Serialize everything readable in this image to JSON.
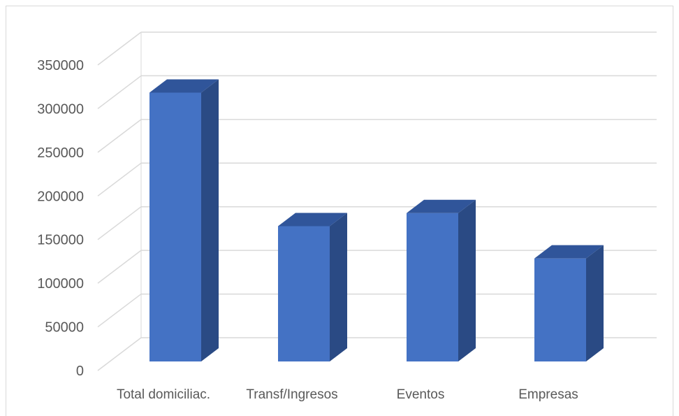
{
  "chart_data": {
    "type": "bar",
    "style": "3d-column",
    "categories": [
      "Total domiciliac.",
      "Transf/Ingresos",
      "Eventos",
      "Empresas"
    ],
    "values": [
      308000,
      155000,
      170000,
      118000
    ],
    "title": "",
    "xlabel": "",
    "ylabel": "",
    "ylim": [
      0,
      350000
    ],
    "yticks": [
      0,
      50000,
      100000,
      150000,
      200000,
      250000,
      300000,
      350000
    ],
    "ytick_labels": [
      "0",
      "50000",
      "100000",
      "150000",
      "200000",
      "250000",
      "300000",
      "350000"
    ],
    "grid": true,
    "legend": "none",
    "colors": {
      "front": "#4472c4",
      "side": "#2a4a84",
      "top": "#30559a",
      "grid": "#d9d9d9",
      "text": "#595959"
    }
  }
}
